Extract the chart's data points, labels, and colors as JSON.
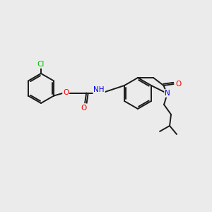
{
  "background_color": "#ebebeb",
  "bond_color": "#1a1a1a",
  "atom_colors": {
    "Cl": "#00bb00",
    "O": "#ee0000",
    "N": "#0000ee",
    "H": "#555555"
  },
  "figsize": [
    3.0,
    3.0
  ],
  "dpi": 100,
  "lw": 1.4,
  "fontsize": 7.5
}
